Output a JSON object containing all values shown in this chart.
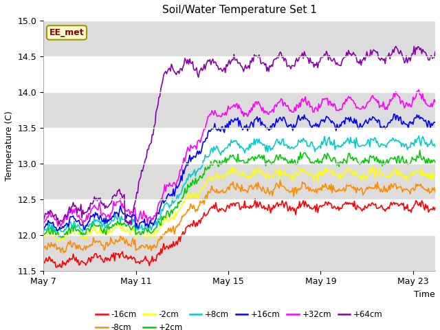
{
  "title": "Soil/Water Temperature Set 1",
  "xlabel": "Time",
  "ylabel": "Temperature (C)",
  "ylim": [
    11.5,
    15.0
  ],
  "yticks": [
    11.5,
    12.0,
    12.5,
    13.0,
    13.5,
    14.0,
    14.5,
    15.0
  ],
  "xtick_labels": [
    "May 7",
    "May 11",
    "May 15",
    "May 19",
    "May 23"
  ],
  "annotation_text": "EE_met",
  "annotation_text_color": "#8B0000",
  "annotation_bg_color": "#FFFFCC",
  "annotation_border_color": "#999900",
  "series_labels": [
    "-16cm",
    "-8cm",
    "-2cm",
    "+2cm",
    "+8cm",
    "+16cm",
    "+32cm",
    "+64cm"
  ],
  "series_colors": [
    "#FF0000",
    "#FF8C00",
    "#FFFF00",
    "#00CC00",
    "#00CCCC",
    "#0000FF",
    "#FF00FF",
    "#8800AA"
  ],
  "bg_band_color": "#DCDCDC",
  "bg_band_ranges": [
    [
      11.5,
      12.0
    ],
    [
      12.5,
      13.0
    ],
    [
      13.5,
      14.0
    ],
    [
      14.5,
      15.0
    ]
  ],
  "n_points": 408,
  "seed": 42,
  "days_total": 17,
  "start_temps": [
    11.6,
    11.8,
    11.95,
    12.0,
    12.05,
    12.1,
    12.18,
    12.22
  ],
  "plateau_temps": [
    12.4,
    12.65,
    12.85,
    13.05,
    13.25,
    13.55,
    13.75,
    14.35
  ],
  "end_temps": [
    12.4,
    12.65,
    12.85,
    13.05,
    13.3,
    13.6,
    13.9,
    14.55
  ],
  "transition_starts": [
    96,
    96,
    96,
    96,
    96,
    96,
    96,
    85
  ],
  "transition_ends": [
    192,
    192,
    192,
    192,
    192,
    192,
    192,
    135
  ],
  "osc_amp": [
    0.04,
    0.04,
    0.04,
    0.04,
    0.05,
    0.06,
    0.08,
    0.08
  ],
  "osc_period": 24,
  "noise_amp": 0.03,
  "linewidth": 1.2
}
